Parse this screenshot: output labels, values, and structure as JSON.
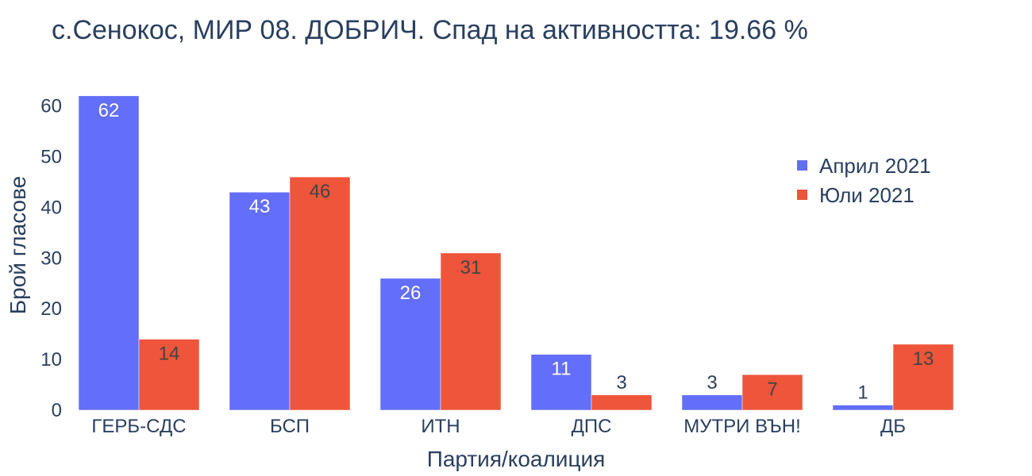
{
  "chart_data": {
    "type": "bar",
    "title": "с.Сенокос, МИР 08. ДОБРИЧ. Спад на активността: 19.66 %",
    "xlabel": "Партия/коалиция",
    "ylabel": "Брой гласове",
    "categories": [
      "ГЕРБ-СДС",
      "БСП",
      "ИТН",
      "ДПС",
      "МУТРИ ВЪН!",
      "ДБ"
    ],
    "series": [
      {
        "name": "Април 2021",
        "color": "#636efa",
        "values": [
          62,
          43,
          26,
          11,
          3,
          1
        ]
      },
      {
        "name": "Юли 2021",
        "color": "#ef553b",
        "values": [
          14,
          46,
          31,
          3,
          7,
          13
        ]
      }
    ],
    "ylim": [
      0,
      65.26
    ],
    "yticks": [
      0,
      10,
      20,
      30,
      40,
      50,
      60
    ],
    "grid": false,
    "legend_position": "top-right"
  }
}
